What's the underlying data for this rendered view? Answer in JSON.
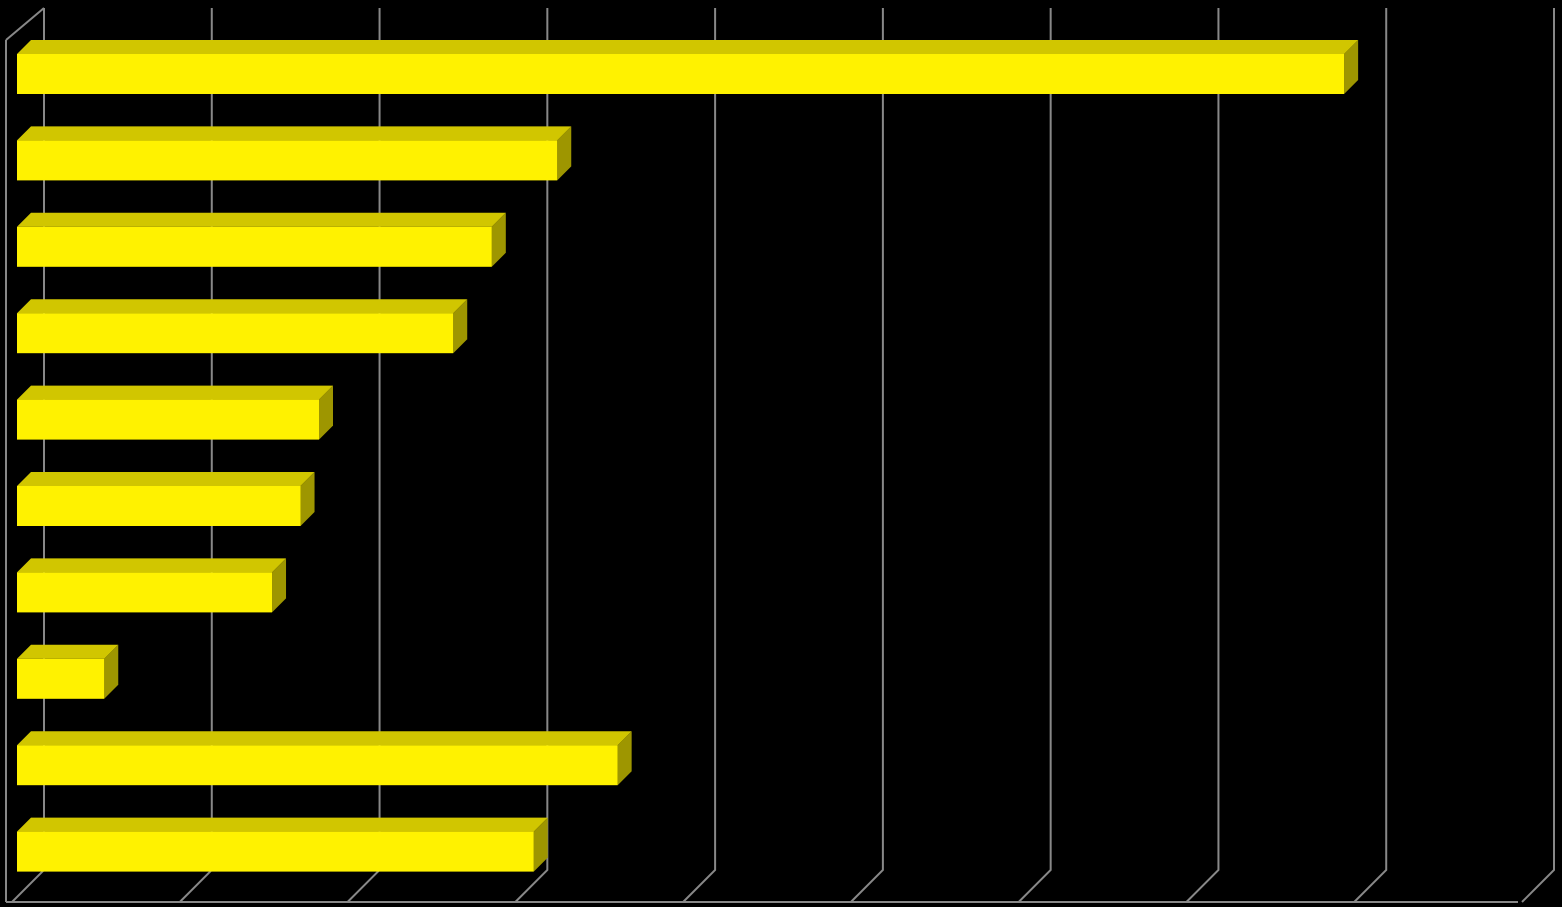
{
  "chart_data": {
    "type": "bar",
    "orientation": "horizontal",
    "categories": [
      null,
      null,
      null,
      null,
      null,
      null,
      null,
      null,
      null,
      null
    ],
    "values": [
      7.91,
      3.22,
      2.83,
      2.6,
      1.8,
      1.69,
      1.52,
      0.52,
      3.58,
      3.08
    ],
    "color": "#fff200",
    "xlim": [
      0,
      9
    ],
    "xticks": [
      0,
      1,
      2,
      3,
      4,
      5,
      6,
      7,
      8,
      9
    ],
    "grid": true
  }
}
